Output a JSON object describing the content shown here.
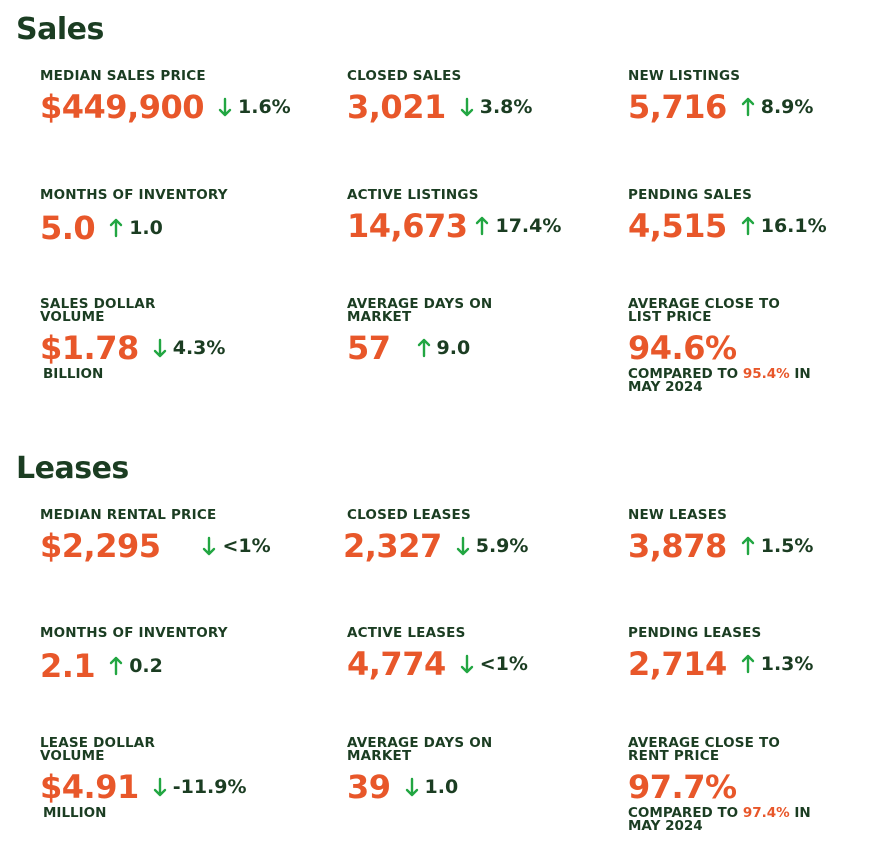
{
  "colors": {
    "label": "#1b3d22",
    "value": "#e8572a",
    "arrow": "#22a642"
  },
  "sales": {
    "title": "Sales",
    "median_sales_price": {
      "label": "MEDIAN SALES PRICE",
      "value": "$449,900",
      "direction": "down",
      "change": "1.6%"
    },
    "closed_sales": {
      "label": "CLOSED SALES",
      "value": "3,021",
      "direction": "down",
      "change": "3.8%"
    },
    "new_listings": {
      "label": "NEW LISTINGS",
      "value": "5,716",
      "direction": "up",
      "change": "8.9%"
    },
    "months_of_inventory": {
      "label": "MONTHS OF INVENTORY",
      "value": "5.0",
      "direction": "up",
      "change": "1.0"
    },
    "active_listings": {
      "label": "ACTIVE LISTINGS",
      "value": "14,673",
      "direction": "up",
      "change": "17.4%"
    },
    "pending_sales": {
      "label": "PENDING SALES",
      "value": "4,515",
      "direction": "up",
      "change": "16.1%"
    },
    "sales_dollar_volume": {
      "label_1": "SALES DOLLAR",
      "label_2": "VOLUME",
      "value": "$1.78",
      "direction": "down",
      "change": "4.3%",
      "unit": "BILLION"
    },
    "average_days_on_market": {
      "label_1": "AVERAGE DAYS ON",
      "label_2": "MARKET",
      "value": "57",
      "direction": "up",
      "change": "9.0"
    },
    "average_close_to_list": {
      "label_1": "AVERAGE CLOSE TO",
      "label_2": "LIST PRICE",
      "value": "94.6%",
      "compare_prefix": "COMPARED TO",
      "compare_value": "95.4%",
      "compare_suffix": "IN",
      "compare_period": "MAY 2024"
    }
  },
  "leases": {
    "title": "Leases",
    "median_rental_price": {
      "label": "MEDIAN RENTAL PRICE",
      "value": "$2,295",
      "direction": "down",
      "change": "<1%"
    },
    "closed_leases": {
      "label": "CLOSED LEASES",
      "value": "2,327",
      "direction": "down",
      "change": "5.9%"
    },
    "new_leases": {
      "label": "NEW LEASES",
      "value": "3,878",
      "direction": "up",
      "change": "1.5%"
    },
    "months_of_inventory": {
      "label": "MONTHS OF INVENTORY",
      "value": "2.1",
      "direction": "up",
      "change": "0.2"
    },
    "active_leases": {
      "label": "ACTIVE LEASES",
      "value": "4,774",
      "direction": "down",
      "change": "<1%"
    },
    "pending_leases": {
      "label": "PENDING LEASES",
      "value": "2,714",
      "direction": "up",
      "change": "1.3%"
    },
    "lease_dollar_volume": {
      "label_1": "LEASE DOLLAR",
      "label_2": "VOLUME",
      "value": "$4.91",
      "direction": "down",
      "change": "-11.9%",
      "unit": "MILLION"
    },
    "average_days_on_market": {
      "label_1": "AVERAGE DAYS ON",
      "label_2": "MARKET",
      "value": "39",
      "direction": "down",
      "change": "1.0"
    },
    "average_close_to_rent": {
      "label_1": "AVERAGE CLOSE TO",
      "label_2": "RENT PRICE",
      "value": "97.7%",
      "compare_prefix": "COMPARED TO",
      "compare_value": "97.4%",
      "compare_suffix": "IN",
      "compare_period": "MAY 2024"
    }
  }
}
